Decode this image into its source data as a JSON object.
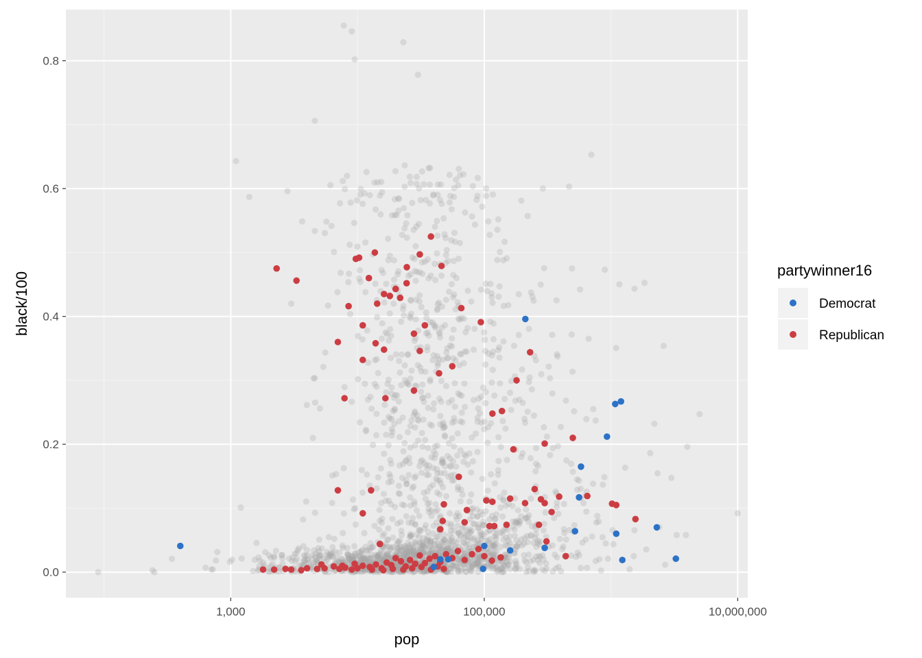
{
  "chart_data": {
    "type": "scatter",
    "xlabel": "pop",
    "ylabel": "black/100",
    "x_scale": "log10",
    "xlim": [
      50,
      12000000
    ],
    "ylim": [
      -0.04,
      0.88
    ],
    "x_ticks": [
      1000,
      100000,
      10000000
    ],
    "x_tick_labels": [
      "1,000",
      "100,000",
      "10,000,000"
    ],
    "y_ticks": [
      0.0,
      0.2,
      0.4,
      0.6,
      0.8
    ],
    "y_tick_labels": [
      "0.0",
      "0.2",
      "0.4",
      "0.6",
      "0.8"
    ],
    "grid": true,
    "legend": {
      "title": "partywinner16",
      "placement": "right",
      "entries": [
        {
          "label": "Democrat",
          "color": "#2c72c7"
        },
        {
          "label": "Republican",
          "color": "#cc3d43"
        }
      ]
    },
    "background_points_color": "#a6a6a6",
    "series": [
      {
        "name": "Democrat",
        "color": "#2c72c7",
        "points": [
          [
            400,
            0.041
          ],
          [
            211000,
            0.396
          ],
          [
            1200000,
            0.267
          ],
          [
            1080000,
            0.263
          ],
          [
            930000,
            0.212
          ],
          [
            580000,
            0.165
          ],
          [
            560000,
            0.117
          ],
          [
            520000,
            0.064
          ],
          [
            300000,
            0.038
          ],
          [
            160000,
            0.034
          ],
          [
            100000,
            0.041
          ],
          [
            98000,
            0.005
          ],
          [
            45000,
            0.02
          ],
          [
            52000,
            0.02
          ],
          [
            40000,
            0.008
          ],
          [
            2300000,
            0.07
          ],
          [
            1100000,
            0.06
          ],
          [
            1230000,
            0.019
          ],
          [
            3250000,
            0.021
          ]
        ]
      },
      {
        "name": "Republican",
        "color": "#cc3d43",
        "points": [
          [
            2300,
            0.475
          ],
          [
            3300,
            0.456
          ],
          [
            10300,
            0.492
          ],
          [
            9700,
            0.49
          ],
          [
            13700,
            0.5
          ],
          [
            12300,
            0.46
          ],
          [
            11000,
            0.386
          ],
          [
            13900,
            0.358
          ],
          [
            14300,
            0.42
          ],
          [
            16200,
            0.435
          ],
          [
            18000,
            0.432
          ],
          [
            20000,
            0.443
          ],
          [
            21700,
            0.429
          ],
          [
            24500,
            0.477
          ],
          [
            24400,
            0.452
          ],
          [
            27900,
            0.373
          ],
          [
            31000,
            0.497
          ],
          [
            31000,
            0.346
          ],
          [
            34000,
            0.386
          ],
          [
            38000,
            0.525
          ],
          [
            46000,
            0.479
          ],
          [
            44000,
            0.311
          ],
          [
            56000,
            0.322
          ],
          [
            66000,
            0.413
          ],
          [
            94000,
            0.391
          ],
          [
            7900,
            0.272
          ],
          [
            7000,
            0.36
          ],
          [
            8500,
            0.416
          ],
          [
            16200,
            0.348
          ],
          [
            16600,
            0.272
          ],
          [
            11000,
            0.332
          ],
          [
            7000,
            0.128
          ],
          [
            12800,
            0.128
          ],
          [
            27900,
            0.284
          ],
          [
            138000,
            0.252
          ],
          [
            116000,
            0.248
          ],
          [
            180000,
            0.3
          ],
          [
            230000,
            0.344
          ],
          [
            170000,
            0.192
          ],
          [
            300000,
            0.201
          ],
          [
            500000,
            0.21
          ],
          [
            650000,
            0.119
          ],
          [
            1100000,
            0.105
          ],
          [
            1020000,
            0.107
          ],
          [
            1560000,
            0.083
          ],
          [
            11000,
            0.092
          ],
          [
            15000,
            0.044
          ],
          [
            48000,
            0.106
          ],
          [
            63000,
            0.149
          ],
          [
            70000,
            0.078
          ],
          [
            73000,
            0.097
          ],
          [
            104000,
            0.112
          ],
          [
            116000,
            0.11
          ],
          [
            160000,
            0.115
          ],
          [
            210000,
            0.108
          ],
          [
            250000,
            0.13
          ],
          [
            280000,
            0.114
          ],
          [
            300000,
            0.108
          ],
          [
            340000,
            0.094
          ],
          [
            390000,
            0.118
          ],
          [
            440000,
            0.025
          ],
          [
            310000,
            0.048
          ],
          [
            270000,
            0.074
          ],
          [
            150000,
            0.074
          ],
          [
            110000,
            0.072
          ],
          [
            120000,
            0.072
          ],
          [
            47000,
            0.08
          ],
          [
            45000,
            0.067
          ],
          [
            4800,
            0.005
          ],
          [
            5500,
            0.006
          ],
          [
            6500,
            0.009
          ],
          [
            7200,
            0.005
          ],
          [
            8000,
            0.007
          ],
          [
            9000,
            0.004
          ],
          [
            10000,
            0.006
          ],
          [
            11000,
            0.01
          ],
          [
            12500,
            0.008
          ],
          [
            14000,
            0.012
          ],
          [
            15500,
            0.006
          ],
          [
            17000,
            0.015
          ],
          [
            18500,
            0.011
          ],
          [
            20000,
            0.022
          ],
          [
            22000,
            0.017
          ],
          [
            24000,
            0.009
          ],
          [
            26000,
            0.019
          ],
          [
            28500,
            0.013
          ],
          [
            31000,
            0.026
          ],
          [
            34000,
            0.014
          ],
          [
            37000,
            0.021
          ],
          [
            41000,
            0.025
          ],
          [
            45000,
            0.016
          ],
          [
            50000,
            0.028
          ],
          [
            56000,
            0.022
          ],
          [
            62000,
            0.033
          ],
          [
            70000,
            0.019
          ],
          [
            80000,
            0.028
          ],
          [
            90000,
            0.036
          ],
          [
            100000,
            0.025
          ],
          [
            115000,
            0.018
          ],
          [
            135000,
            0.023
          ],
          [
            5200,
            0.012
          ],
          [
            7600,
            0.01
          ],
          [
            9500,
            0.013
          ],
          [
            13000,
            0.004
          ],
          [
            16000,
            0.003
          ],
          [
            19000,
            0.005
          ],
          [
            23000,
            0.004
          ],
          [
            27000,
            0.006
          ],
          [
            32000,
            0.008
          ],
          [
            38000,
            0.004
          ],
          [
            43000,
            0.009
          ],
          [
            48000,
            0.005
          ],
          [
            3000,
            0.004
          ],
          [
            3600,
            0.003
          ],
          [
            2200,
            0.004
          ],
          [
            1800,
            0.004
          ],
          [
            2700,
            0.005
          ],
          [
            4000,
            0.006
          ]
        ]
      }
    ]
  }
}
